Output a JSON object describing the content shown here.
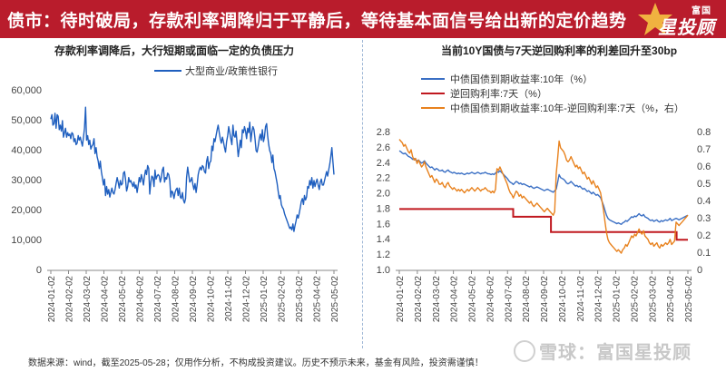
{
  "banner": {
    "title": "债市：待时破局，存款利率调降归于平静后，等待基本面信号给出新的定价趋势",
    "logo_top": "富国",
    "logo_main": "星投顾",
    "bg_color": "#b91c2c"
  },
  "footer": {
    "source": "数据来源：wind，截至2025-05-28；仅用作分析，不构成投资建议。历史不预示未来，基金有风险，投资需谨慎！"
  },
  "watermark": "雪球：富国星投顾",
  "chart_data": [
    {
      "type": "line",
      "title": "存款利率调降后，大行短期或面临一定的负债压力",
      "legend_location": "top-left",
      "series": [
        {
          "name": "大型商业/政策性银行",
          "color": "#1f5fbf",
          "values": [
            50500,
            52000,
            48500,
            49000,
            52500,
            47500,
            52000,
            51500,
            47000,
            48500,
            46500,
            50000,
            44500,
            46000,
            47500,
            44500,
            46000,
            45000,
            45500,
            44000,
            46000,
            45500,
            43000,
            44000,
            42000,
            42500,
            45000,
            43500,
            44500,
            43000,
            41500,
            44500,
            47500,
            54500,
            43500,
            45000,
            42000,
            43500,
            40500,
            41500,
            42000,
            44000,
            39000,
            41000,
            38000,
            36500,
            34000,
            36500,
            33000,
            31000,
            28500,
            30500,
            25000,
            28000,
            25500,
            27000,
            24500,
            26000,
            27500,
            26000,
            25500,
            27000,
            29000,
            31000,
            29500,
            27500,
            30000,
            28500,
            29000,
            32500,
            33000,
            30500,
            26500,
            28000,
            31000,
            29500,
            30000,
            29000,
            28000,
            29500,
            27500,
            28500,
            26000,
            28500,
            31000,
            29500,
            32000,
            30500,
            28500,
            31500,
            33500,
            32000,
            35000,
            34000,
            25500,
            29500,
            31500,
            31000,
            28000,
            33500,
            30500,
            31500,
            32000,
            31500,
            29500,
            31000,
            33500,
            34500,
            29500,
            31000,
            30500,
            32500,
            32000,
            30000,
            24500,
            26500,
            26000,
            24000,
            26000,
            27000,
            27500,
            25000,
            27500,
            24500,
            24000,
            26000,
            23500,
            22500,
            24000,
            31000,
            34500,
            32000,
            29500,
            30000,
            31000,
            28500,
            27000,
            29000,
            26000,
            28500,
            32000,
            33500,
            34500,
            33500,
            35000,
            34500,
            33000,
            32500,
            36500,
            38000,
            34000,
            36000,
            36500,
            41500,
            40000,
            44000,
            43000,
            45000,
            47000,
            48500,
            46000,
            44000,
            42500,
            44500,
            43000,
            41000,
            39500,
            43000,
            45000,
            48000,
            46000,
            44000,
            42000,
            48500,
            45000,
            44500,
            46500,
            42500,
            38000,
            40500,
            43500,
            41000,
            47000,
            46000,
            48000,
            46500,
            44000,
            47500,
            46000,
            49500,
            43000,
            46000,
            48000,
            47000,
            44000,
            40000,
            39500,
            41500,
            44000,
            45500,
            43500,
            47000,
            43000,
            44500,
            48000,
            49000,
            45000,
            42000,
            40000,
            39000,
            36000,
            38500,
            34000,
            33000,
            31000,
            29000,
            26500,
            24000,
            25000,
            22000,
            21000,
            20500,
            19000,
            18000,
            17000,
            16000,
            15000,
            14000,
            14500,
            13500,
            15500,
            13000,
            15000,
            16500,
            18500,
            17500,
            19000,
            21000,
            23000,
            24000,
            22000,
            25000,
            23500,
            24500,
            28000,
            27500,
            30000,
            28500,
            31000,
            27500,
            30000,
            28000,
            29500,
            30500,
            28500,
            27000,
            29500,
            30500,
            28500,
            28500,
            30000,
            31500,
            33000,
            31500,
            33500,
            35500,
            38000,
            41000,
            36500,
            32000
          ],
          "x_range": [
            "2024-01-02",
            "2025-05-28"
          ]
        }
      ],
      "xlabels": [
        "2024-01-02",
        "2024-02-02",
        "2024-03-02",
        "2024-04-02",
        "2024-05-02",
        "2024-06-02",
        "2024-07-02",
        "2024-08-02",
        "2024-09-02",
        "2024-10-02",
        "2024-11-02",
        "2024-12-02",
        "2025-01-02",
        "2025-02-02",
        "2025-03-02",
        "2025-04-02",
        "2025-05-02"
      ],
      "yticks": [
        "0",
        "10,000",
        "20,000",
        "30,000",
        "40,000",
        "50,000",
        "60,000"
      ],
      "ylim": [
        0,
        60000
      ]
    },
    {
      "type": "line",
      "title": "当前10Y国债与7天逆回购利率的利差回升至30bp",
      "legend_location": "top-left",
      "series": [
        {
          "name": "中债国债到期收益率:10年（%）",
          "axis": "left",
          "color": "#3a6fc4",
          "values": [
            2.56,
            2.55,
            2.53,
            2.52,
            2.53,
            2.51,
            2.49,
            2.48,
            2.47,
            2.45,
            2.46,
            2.44,
            2.43,
            2.44,
            2.42,
            2.4,
            2.41,
            2.43,
            2.4,
            2.38,
            2.36,
            2.34,
            2.35,
            2.33,
            2.31,
            2.33,
            2.32,
            2.3,
            2.3,
            2.31,
            2.29,
            2.28,
            2.3,
            2.31,
            2.29,
            2.28,
            2.27,
            2.28,
            2.27,
            2.26,
            2.27,
            2.26,
            2.27,
            2.26,
            2.25,
            2.26,
            2.27,
            2.26,
            2.27,
            2.28,
            2.27,
            2.26,
            2.27,
            2.28,
            2.27,
            2.26,
            2.27,
            2.27,
            2.28,
            2.27,
            2.26,
            2.26,
            2.25,
            2.26,
            2.25,
            2.27,
            2.29,
            2.28,
            2.3,
            2.28,
            2.26,
            2.24,
            2.22,
            2.2,
            2.17,
            2.15,
            2.14,
            2.12,
            2.14,
            2.16,
            2.15,
            2.13,
            2.14,
            2.12,
            2.13,
            2.12,
            2.11,
            2.1,
            2.09,
            2.1,
            2.08,
            2.07,
            2.08,
            2.09,
            2.08,
            2.07,
            2.06,
            2.05,
            2.04,
            2.05,
            2.06,
            2.05,
            2.04,
            2.03,
            2.02,
            2.04,
            2.06,
            2.15,
            2.25,
            2.21,
            2.2,
            2.19,
            2.17,
            2.14,
            2.13,
            2.14,
            2.16,
            2.14,
            2.12,
            2.1,
            2.11,
            2.09,
            2.1,
            2.08,
            2.06,
            2.07,
            2.05,
            2.03,
            2.04,
            2.02,
            2.0,
            2.02,
            2.0,
            1.98,
            1.99,
            1.97,
            1.95,
            1.9,
            1.85,
            1.78,
            1.72,
            1.68,
            1.66,
            1.65,
            1.64,
            1.63,
            1.62,
            1.61,
            1.62,
            1.61,
            1.6,
            1.62,
            1.63,
            1.65,
            1.64,
            1.66,
            1.68,
            1.7,
            1.69,
            1.71,
            1.7,
            1.72,
            1.74,
            1.72,
            1.71,
            1.73,
            1.7,
            1.69,
            1.68,
            1.66,
            1.65,
            1.66,
            1.64,
            1.65,
            1.66,
            1.64,
            1.63,
            1.65,
            1.64,
            1.65,
            1.66,
            1.65,
            1.66,
            1.68,
            1.65,
            1.66,
            1.67,
            1.68,
            1.67,
            1.66,
            1.67,
            1.68,
            1.69,
            1.7,
            1.71,
            1.72
          ],
          "x_range": [
            "2024-01-02",
            "2025-05-28"
          ]
        },
        {
          "name": "逆回购利率:7天（%）",
          "axis": "left",
          "color": "#c0181f",
          "steps": [
            {
              "from": "2024-01-02",
              "to": "2024-07-22",
              "value": 1.8
            },
            {
              "from": "2024-07-22",
              "to": "2024-09-27",
              "value": 1.7
            },
            {
              "from": "2024-09-27",
              "to": "2025-05-08",
              "value": 1.5
            },
            {
              "from": "2025-05-08",
              "to": "2025-05-28",
              "value": 1.4
            }
          ]
        },
        {
          "name": "中债国债到期收益率:10年-逆回购利率:7天（%，右）",
          "axis": "right",
          "color": "#e8821e",
          "values": [
            0.76,
            0.75,
            0.74,
            0.72,
            0.73,
            0.71,
            0.69,
            0.68,
            0.7,
            0.66,
            0.64,
            0.65,
            0.62,
            0.64,
            0.62,
            0.6,
            0.61,
            0.63,
            0.6,
            0.58,
            0.56,
            0.54,
            0.55,
            0.53,
            0.51,
            0.53,
            0.52,
            0.5,
            0.5,
            0.51,
            0.49,
            0.48,
            0.5,
            0.51,
            0.49,
            0.48,
            0.47,
            0.48,
            0.47,
            0.46,
            0.47,
            0.46,
            0.47,
            0.46,
            0.45,
            0.46,
            0.47,
            0.46,
            0.47,
            0.48,
            0.47,
            0.46,
            0.47,
            0.48,
            0.47,
            0.46,
            0.47,
            0.47,
            0.48,
            0.47,
            0.46,
            0.46,
            0.45,
            0.46,
            0.45,
            0.47,
            0.59,
            0.58,
            0.6,
            0.58,
            0.56,
            0.54,
            0.52,
            0.5,
            0.47,
            0.45,
            0.44,
            0.42,
            0.44,
            0.46,
            0.45,
            0.43,
            0.44,
            0.42,
            0.43,
            0.42,
            0.41,
            0.4,
            0.39,
            0.4,
            0.38,
            0.37,
            0.38,
            0.39,
            0.38,
            0.37,
            0.36,
            0.35,
            0.34,
            0.35,
            0.36,
            0.35,
            0.34,
            0.33,
            0.32,
            0.34,
            0.56,
            0.65,
            0.75,
            0.71,
            0.7,
            0.69,
            0.67,
            0.64,
            0.63,
            0.64,
            0.66,
            0.64,
            0.62,
            0.6,
            0.61,
            0.59,
            0.6,
            0.58,
            0.56,
            0.57,
            0.55,
            0.53,
            0.54,
            0.52,
            0.5,
            0.52,
            0.5,
            0.48,
            0.49,
            0.47,
            0.45,
            0.4,
            0.35,
            0.28,
            0.22,
            0.18,
            0.16,
            0.15,
            0.14,
            0.13,
            0.12,
            0.11,
            0.12,
            0.11,
            0.1,
            0.12,
            0.13,
            0.15,
            0.14,
            0.16,
            0.18,
            0.2,
            0.19,
            0.21,
            0.2,
            0.22,
            0.24,
            0.22,
            0.21,
            0.23,
            0.2,
            0.19,
            0.18,
            0.16,
            0.15,
            0.16,
            0.14,
            0.15,
            0.16,
            0.14,
            0.13,
            0.15,
            0.14,
            0.15,
            0.16,
            0.15,
            0.16,
            0.18,
            0.15,
            0.16,
            0.17,
            0.28,
            0.27,
            0.26,
            0.27,
            0.28,
            0.29,
            0.3,
            0.31,
            0.32
          ],
          "x_range": [
            "2024-01-02",
            "2025-05-28"
          ]
        }
      ],
      "xlabels": [
        "2024-01-02",
        "2024-02-02",
        "2024-03-02",
        "2024-04-02",
        "2024-05-02",
        "2024-06-02",
        "2024-07-02",
        "2024-08-02",
        "2024-09-02",
        "2024-10-02",
        "2024-11-02",
        "2024-12-02",
        "2025-01-02",
        "2025-02-02",
        "2025-03-02",
        "2025-04-02",
        "2025-05-02"
      ],
      "yticks_left": [
        "1.0",
        "1.2",
        "1.4",
        "1.6",
        "1.8",
        "2.0",
        "2.2",
        "2.4",
        "2.6",
        "2.8"
      ],
      "yticks_right": [
        "0",
        "0.1",
        "0.2",
        "0.3",
        "0.4",
        "0.5",
        "0.6",
        "0.7",
        "0.8"
      ],
      "ylim_left": [
        1.0,
        2.8
      ],
      "ylim_right": [
        0,
        0.8
      ]
    }
  ]
}
